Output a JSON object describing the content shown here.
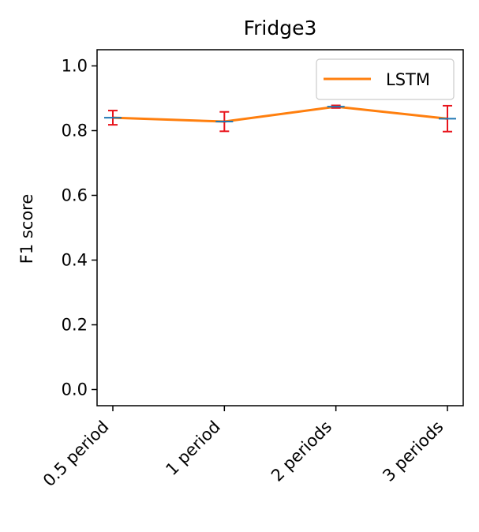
{
  "chart_data": {
    "type": "line",
    "title": "Fridge3",
    "xlabel": "",
    "ylabel": "F1 score",
    "categories": [
      "0.5 period",
      "1 period",
      "2 periods",
      "3 periods"
    ],
    "ylim": [
      -0.05,
      1.05
    ],
    "yticks": [
      "0.0",
      "0.2",
      "0.4",
      "0.6",
      "0.8",
      "1.0"
    ],
    "series": [
      {
        "name": "LSTM",
        "color": "#ff7f0e",
        "values": [
          0.84,
          0.828,
          0.874,
          0.837
        ],
        "errors": [
          0.022,
          0.03,
          0.004,
          0.04
        ],
        "error_color": "#e8141c",
        "mean_marker_color": "#1f77b4"
      }
    ],
    "legend": {
      "position": "top-right",
      "entries": [
        "LSTM"
      ]
    },
    "grid": false
  }
}
